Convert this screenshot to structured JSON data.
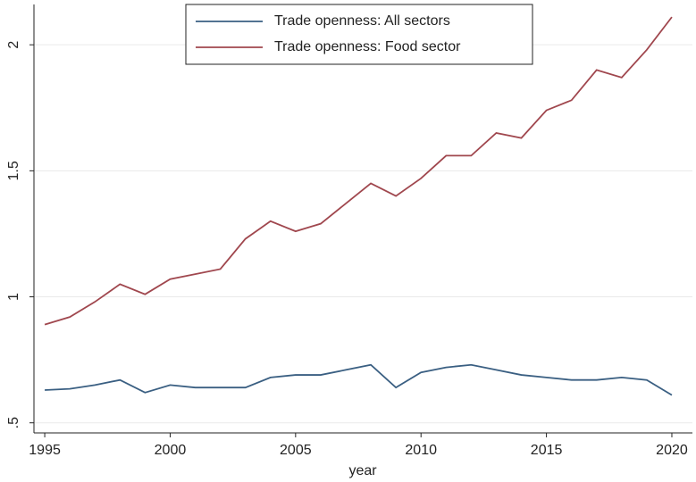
{
  "chart_data": {
    "type": "line",
    "x_label": "year",
    "x": [
      1995,
      1996,
      1997,
      1998,
      1999,
      2000,
      2001,
      2002,
      2003,
      2004,
      2005,
      2006,
      2007,
      2008,
      2009,
      2010,
      2011,
      2012,
      2013,
      2014,
      2015,
      2016,
      2017,
      2018,
      2019,
      2020
    ],
    "series": [
      {
        "name": "Trade openness: All sectors",
        "color": "#3a5f82",
        "values": [
          0.63,
          0.635,
          0.65,
          0.67,
          0.62,
          0.65,
          0.64,
          0.64,
          0.64,
          0.68,
          0.69,
          0.69,
          0.71,
          0.73,
          0.64,
          0.7,
          0.72,
          0.73,
          0.71,
          0.69,
          0.68,
          0.67,
          0.67,
          0.68,
          0.67,
          0.61
        ]
      },
      {
        "name": "Trade openness: Food sector",
        "color": "#a0474e",
        "values": [
          0.89,
          0.92,
          0.98,
          1.05,
          1.01,
          1.07,
          1.09,
          1.11,
          1.23,
          1.3,
          1.26,
          1.29,
          1.37,
          1.45,
          1.4,
          1.47,
          1.56,
          1.56,
          1.65,
          1.63,
          1.74,
          1.78,
          1.9,
          1.87,
          1.98,
          2.11
        ]
      }
    ],
    "xlim": [
      1994.57,
      2020.82
    ],
    "xticks": [
      1995,
      2000,
      2005,
      2010,
      2015,
      2020
    ],
    "ylim": [
      0.46,
      2.16
    ],
    "yticks": [
      {
        "value": 0.5,
        "label": ".5"
      },
      1,
      1.5,
      2
    ],
    "grid": true,
    "legend_position": "top"
  }
}
